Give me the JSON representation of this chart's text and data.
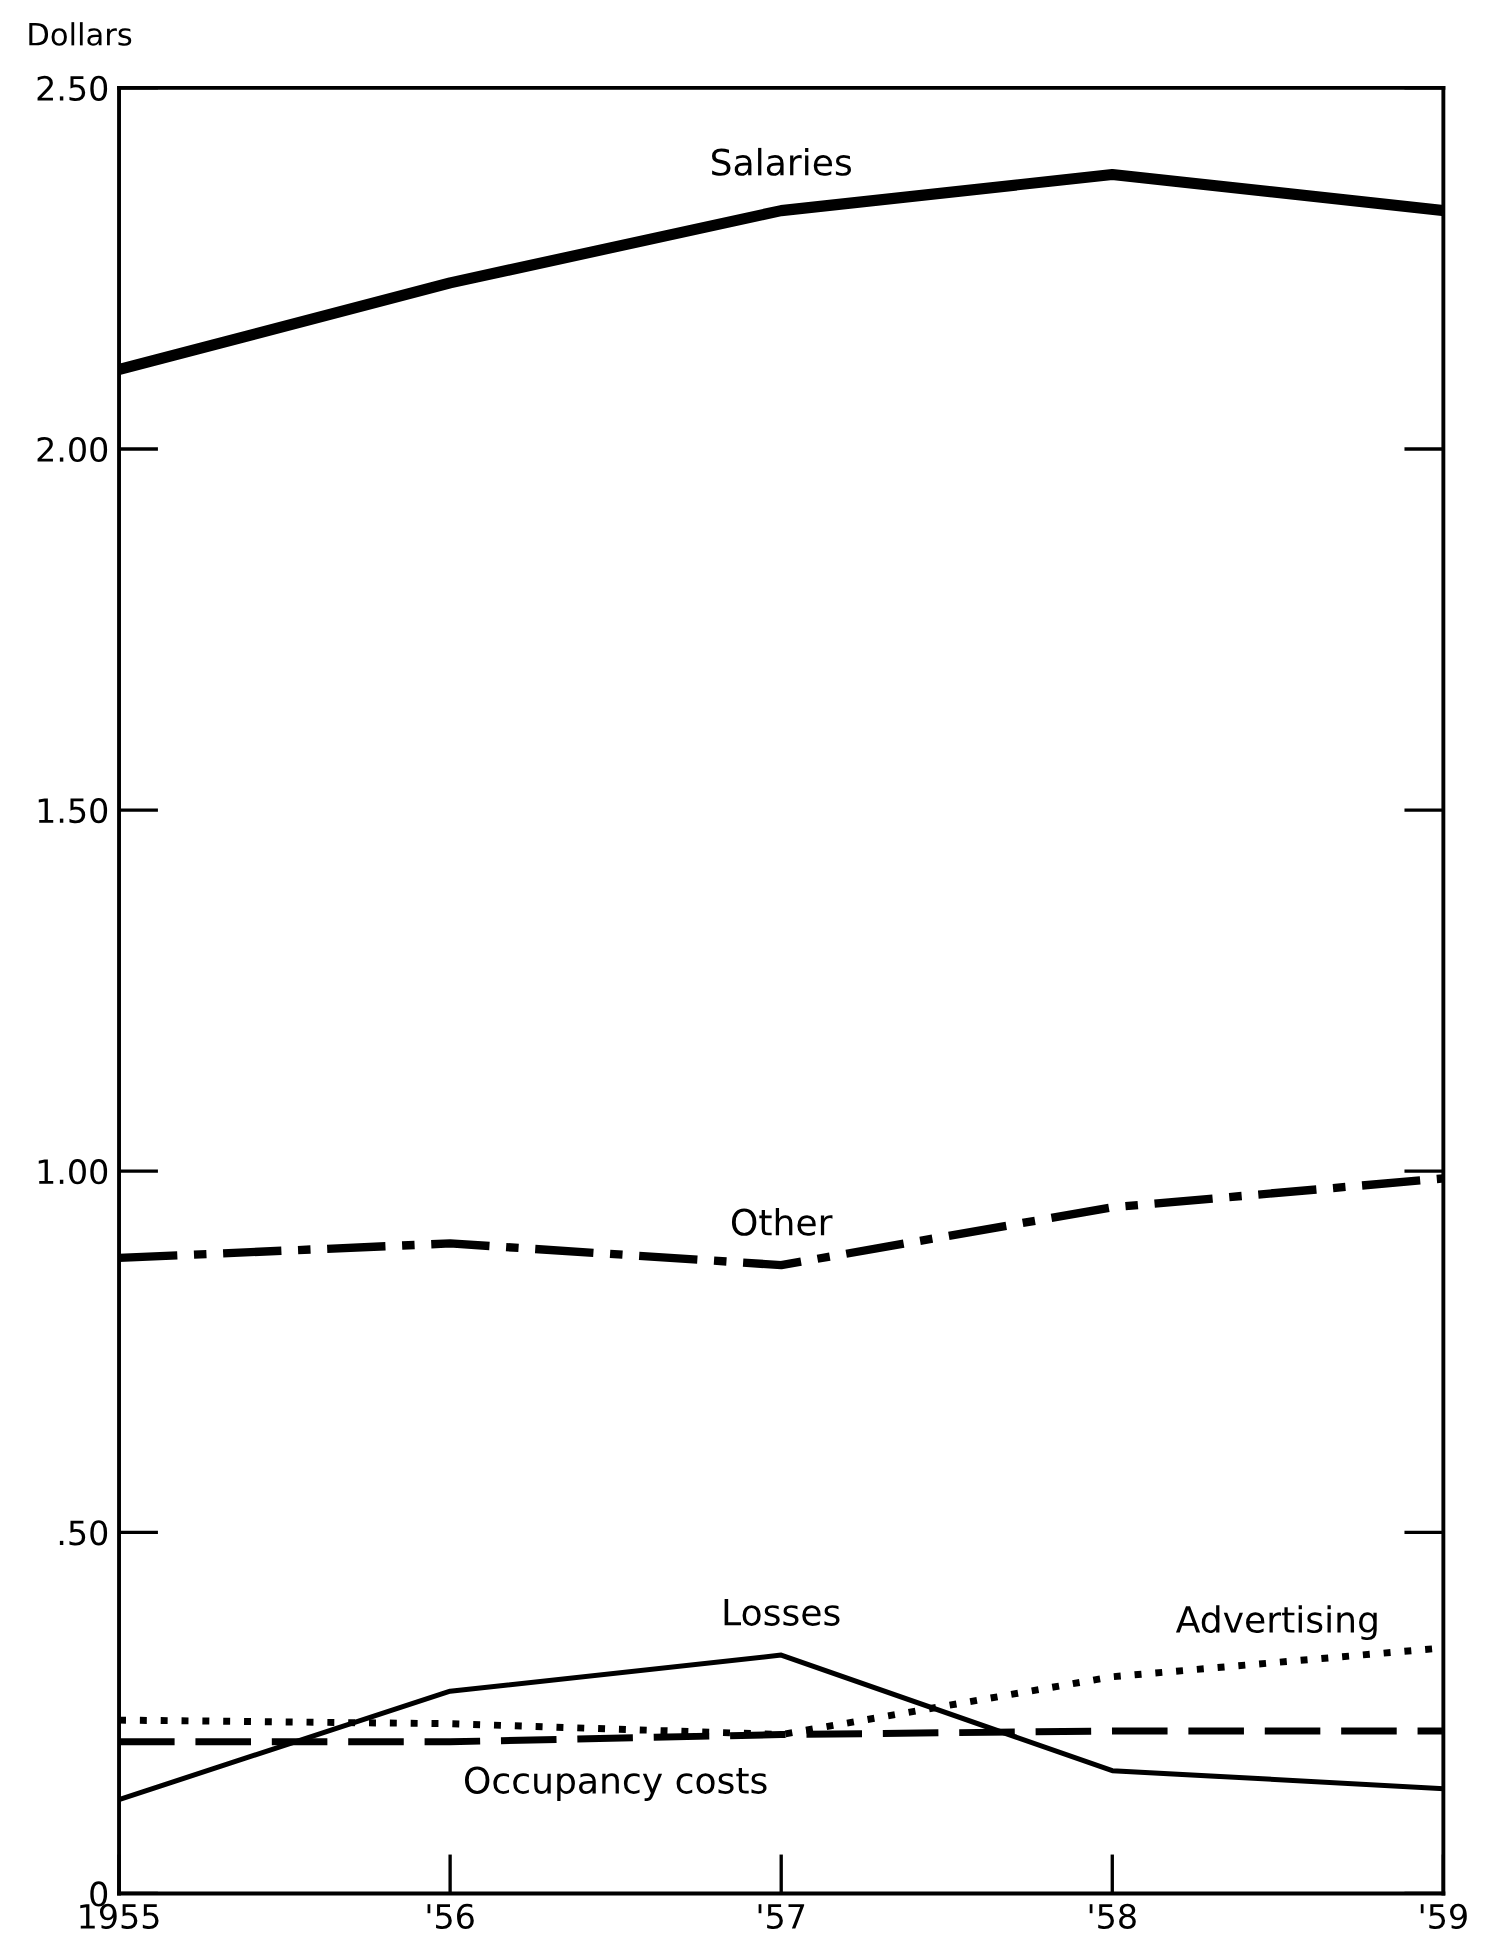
{
  "chart_data": {
    "type": "line",
    "ylabel": "Dollars",
    "x": [
      1955,
      1956,
      1957,
      1958,
      1959
    ],
    "xlim": [
      1955,
      1959
    ],
    "xticks": [
      {
        "value": 1955,
        "label": "1955"
      },
      {
        "value": 1956,
        "label": "'56"
      },
      {
        "value": 1957,
        "label": "'57"
      },
      {
        "value": 1958,
        "label": "'58"
      },
      {
        "value": 1959,
        "label": "'59"
      }
    ],
    "ylim": [
      0,
      2.5
    ],
    "yticks": [
      0,
      {
        "value": 0.5,
        "label": ".50"
      },
      {
        "value": 1,
        "label": "1.00"
      },
      {
        "value": 1.5,
        "label": "1.50"
      },
      {
        "value": 2,
        "label": "2.00"
      },
      {
        "value": 2.5,
        "label": "2.50"
      }
    ],
    "grid": false,
    "legend": false,
    "marker": "none",
    "series": [
      {
        "name": "Salaries",
        "color": "#000000",
        "line_style": "solid",
        "values": [
          2.11,
          2.23,
          2.33,
          2.38,
          2.33
        ]
      },
      {
        "name": "Other",
        "color": "#000000",
        "line_style": "dashdot",
        "values": [
          0.88,
          0.9,
          0.87,
          0.95,
          0.99
        ]
      },
      {
        "name": "Losses",
        "color": "#000000",
        "line_style": "solid",
        "values": [
          0.13,
          0.28,
          0.33,
          0.17,
          0.145
        ]
      },
      {
        "name": "Advertising",
        "color": "#000000",
        "line_style": "dotted",
        "values": [
          0.24,
          0.235,
          0.22,
          0.3,
          0.34
        ]
      },
      {
        "name": "Occupancy costs",
        "color": "#000000",
        "line_style": "dashed",
        "values": [
          0.21,
          0.21,
          0.22,
          0.225,
          0.225
        ]
      }
    ]
  }
}
